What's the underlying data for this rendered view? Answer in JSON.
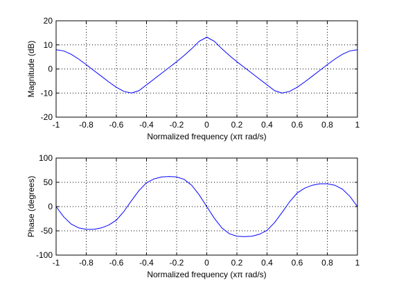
{
  "figure_background": "#ffffff",
  "chart_data": [
    {
      "type": "line",
      "title": "",
      "xlabel": "Normalized frequency (xπ rad/s)",
      "ylabel": "Magnitude (dB)",
      "xlim": [
        -1,
        1
      ],
      "ylim": [
        -20,
        20
      ],
      "xticks": [
        -1,
        -0.8,
        -0.6,
        -0.4,
        -0.2,
        0,
        0.2,
        0.4,
        0.6,
        0.8,
        1
      ],
      "yticks": [
        -20,
        -10,
        0,
        10,
        20
      ],
      "grid": true,
      "line_color": "#0000ff",
      "series": [
        {
          "x": [
            -1,
            -0.95,
            -0.9,
            -0.85,
            -0.8,
            -0.75,
            -0.7,
            -0.65,
            -0.6,
            -0.55,
            -0.5,
            -0.45,
            -0.4,
            -0.35,
            -0.3,
            -0.25,
            -0.2,
            -0.15,
            -0.1,
            -0.05,
            0,
            0.05,
            0.1,
            0.15,
            0.2,
            0.25,
            0.3,
            0.35,
            0.4,
            0.45,
            0.5,
            0.55,
            0.6,
            0.65,
            0.7,
            0.75,
            0.8,
            0.85,
            0.9,
            0.95,
            1
          ],
          "values": [
            8,
            7.5,
            6.1,
            4.1,
            1.8,
            -0.6,
            -3.0,
            -5.4,
            -7.6,
            -9.3,
            -10,
            -9.0,
            -6.6,
            -4.2,
            -1.8,
            0.6,
            3.0,
            5.6,
            8.4,
            11.5,
            13.2,
            11.5,
            8.4,
            5.6,
            3.0,
            0.6,
            -1.8,
            -4.2,
            -6.6,
            -9.0,
            -10,
            -9.3,
            -7.6,
            -5.4,
            -3.0,
            -0.6,
            1.8,
            4.1,
            6.1,
            7.5,
            8
          ]
        }
      ]
    },
    {
      "type": "line",
      "title": "",
      "xlabel": "Normalized frequency (xπ rad/s)",
      "ylabel": "Phase (degrees)",
      "xlim": [
        -1,
        1
      ],
      "ylim": [
        -100,
        100
      ],
      "xticks": [
        -1,
        -0.8,
        -0.6,
        -0.4,
        -0.2,
        0,
        0.2,
        0.4,
        0.6,
        0.8,
        1
      ],
      "yticks": [
        -100,
        -50,
        0,
        50,
        100
      ],
      "grid": true,
      "line_color": "#0000ff",
      "series": [
        {
          "x": [
            -1,
            -0.95,
            -0.9,
            -0.85,
            -0.8,
            -0.75,
            -0.7,
            -0.65,
            -0.6,
            -0.55,
            -0.5,
            -0.45,
            -0.4,
            -0.35,
            -0.3,
            -0.25,
            -0.2,
            -0.15,
            -0.1,
            -0.05,
            0,
            0.05,
            0.1,
            0.15,
            0.2,
            0.25,
            0.3,
            0.35,
            0.4,
            0.45,
            0.5,
            0.55,
            0.6,
            0.65,
            0.7,
            0.75,
            0.8,
            0.85,
            0.9,
            0.95,
            1
          ],
          "values": [
            0,
            -21,
            -36,
            -44,
            -47,
            -47,
            -44,
            -38,
            -28,
            -10,
            12,
            33,
            49,
            57,
            61,
            62,
            61,
            56,
            44,
            24,
            0,
            -24,
            -44,
            -56,
            -61,
            -62,
            -61,
            -57,
            -49,
            -33,
            -12,
            10,
            28,
            38,
            44,
            47,
            47,
            44,
            36,
            21,
            0
          ]
        }
      ]
    }
  ]
}
